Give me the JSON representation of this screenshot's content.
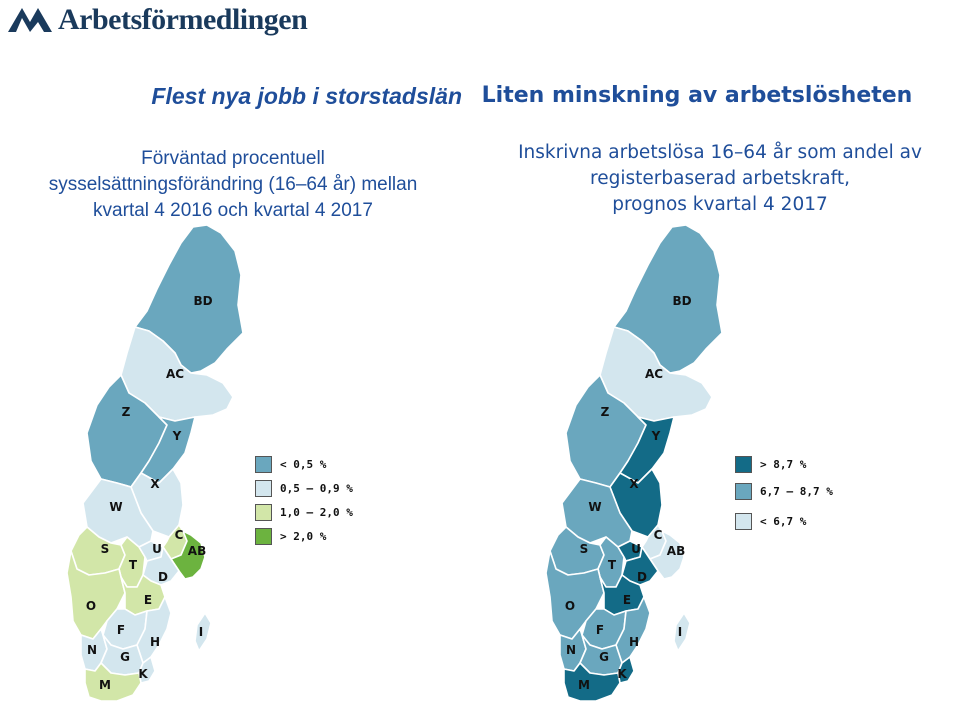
{
  "logo": {
    "text": "Arbetsförmedlingen",
    "icon": "af-logo-icon"
  },
  "left": {
    "title": "Flest nya jobb i storstadslän",
    "subtitle_lines": [
      "Förväntad procentuell",
      "sysselsättningsförändring (16–64 år) mellan",
      "kvartal 4 2016 och kvartal 4 2017"
    ],
    "legend": [
      {
        "label": "< 0,5 %",
        "color": "#6aa7be"
      },
      {
        "label": "0,5 – 0,9 %",
        "color": "#d3e6ee"
      },
      {
        "label": "1,0 – 2,0 %",
        "color": "#d2e6a8"
      },
      {
        "label": "> 2,0 %",
        "color": "#6cb33f"
      }
    ],
    "regions": {
      "BD": "#6aa7be",
      "AC": "#d3e6ee",
      "Z": "#6aa7be",
      "Y": "#6aa7be",
      "X": "#d3e6ee",
      "W": "#d3e6ee",
      "S": "#d2e6a8",
      "T": "#d2e6a8",
      "U": "#d3e6ee",
      "C": "#d2e6a8",
      "AB": "#6cb33f",
      "D": "#d3e6ee",
      "O": "#d2e6a8",
      "E": "#d2e6a8",
      "F": "#d3e6ee",
      "H": "#d3e6ee",
      "I": "#d3e6ee",
      "N": "#d3e6ee",
      "G": "#d3e6ee",
      "K": "#d3e6ee",
      "M": "#d2e6a8"
    }
  },
  "right": {
    "title": "Liten minskning av arbetslösheten",
    "subtitle_lines": [
      "Inskrivna arbetslösa 16–64 år som andel av",
      "registerbaserad arbetskraft,",
      "prognos kvartal 4 2017"
    ],
    "legend": [
      {
        "label": "> 8,7 %",
        "color": "#136b87"
      },
      {
        "label": "6,7 – 8,7 %",
        "color": "#6aa7be"
      },
      {
        "label": "< 6,7 %",
        "color": "#d3e6ee"
      }
    ],
    "regions": {
      "BD": "#6aa7be",
      "AC": "#d3e6ee",
      "Z": "#6aa7be",
      "Y": "#136b87",
      "X": "#136b87",
      "W": "#6aa7be",
      "S": "#6aa7be",
      "T": "#6aa7be",
      "U": "#136b87",
      "C": "#d3e6ee",
      "AB": "#d3e6ee",
      "D": "#136b87",
      "O": "#6aa7be",
      "E": "#136b87",
      "F": "#6aa7be",
      "H": "#6aa7be",
      "I": "#d3e6ee",
      "N": "#6aa7be",
      "G": "#6aa7be",
      "K": "#136b87",
      "M": "#136b87"
    }
  }
}
